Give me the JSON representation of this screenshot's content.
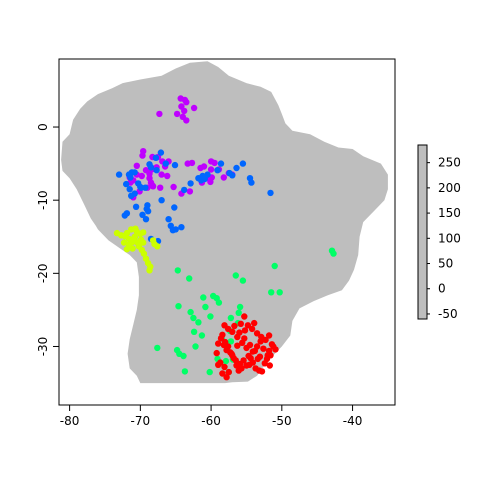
{
  "chart_data": {
    "type": "scatter",
    "title": "",
    "xlabel": "",
    "ylabel": "",
    "xlim": [
      -81.5,
      -34
    ],
    "ylim": [
      -38,
      9.3
    ],
    "x_ticks": [
      -80,
      -70,
      -60,
      -50,
      -40
    ],
    "y_ticks": [
      0,
      -10,
      -20,
      -30
    ],
    "background": {
      "description_kind": "raster map of South America (elevation-like scale, single grey in figure)",
      "fill_color": "#bebebe"
    },
    "colorbar": {
      "ticks": [
        250,
        200,
        150,
        100,
        50,
        0,
        -50
      ],
      "range": [
        -60,
        285
      ],
      "color": "#bebebe"
    },
    "series": [
      {
        "color": "#bf00ff",
        "x": [
          -64.3,
          -63.7,
          -63.5,
          -64.2,
          -63.8,
          -64.8,
          -64.0,
          -63.5,
          -62.4,
          -67.3,
          -69.7,
          -69.6,
          -68.3,
          -67.5,
          -66.9,
          -66.5,
          -68.4,
          -67.0,
          -66.2,
          -69.2,
          -68.7,
          -69.8,
          -68.7,
          -68.5,
          -68.2,
          -67.7,
          -69.0,
          -70.1,
          -68.3,
          -67.2,
          -70.5,
          -71.5,
          -71.0,
          -71.4,
          -70.5,
          -66.0,
          -65.3,
          -64.2,
          -63.3,
          -62.7,
          -63.0,
          -61.5,
          -61.0,
          -60.6,
          -60.1,
          -59.9,
          -59.5,
          -61.3,
          -60.0,
          -60.0,
          -58.9,
          -58.2,
          -57.5,
          -57.0,
          -71.0
        ],
        "y": [
          3.9,
          3.7,
          3.4,
          2.8,
          2.2,
          1.8,
          1.4,
          0.9,
          2.6,
          1.8,
          -3.9,
          -3.3,
          -4.1,
          -4.1,
          -4.7,
          -5.4,
          -5.8,
          -6.5,
          -6.7,
          -5.9,
          -6.4,
          -6.7,
          -7.0,
          -7.6,
          -8.1,
          -5.5,
          -8.3,
          -8.8,
          -8.0,
          -8.3,
          -6.5,
          -6.9,
          -7.3,
          -7.6,
          -5.3,
          -4.7,
          -8.2,
          -9.1,
          -5.0,
          -4.9,
          -8.8,
          -5.6,
          -5.4,
          -7.0,
          -7.5,
          -6.9,
          -4.9,
          -7.6,
          -4.7,
          -5.8,
          -5.8,
          -6.9,
          -6.3,
          -6.5,
          -9.6
        ]
      },
      {
        "color": "#0066ff",
        "x": [
          -73.0,
          -72.0,
          -71.5,
          -71.3,
          -70.8,
          -70.6,
          -71.9,
          -72.2,
          -71.2,
          -71.6,
          -70.8,
          -71.4,
          -70.3,
          -69.9,
          -69.3,
          -68.7,
          -67.8,
          -67.1,
          -66.4,
          -65.1,
          -65.7,
          -66.0,
          -67.5,
          -68.5,
          -69.2,
          -69.7,
          -65.4,
          -65.0,
          -64.2,
          -63.8,
          -62.9,
          -61.8,
          -61.4,
          -60.9,
          -60.5,
          -59.1,
          -58.6,
          -57.4,
          -57.0,
          -56.4,
          -55.5,
          -54.5,
          -54.3,
          -51.6,
          -69.1,
          -68.9,
          -69.0,
          -70.0,
          -67.0,
          -65.2,
          -68.5,
          -67.7,
          -61.2
        ],
        "y": [
          -6.5,
          -7.8,
          -8.5,
          -9.4,
          -9.1,
          -10.9,
          -11.8,
          -12.1,
          -6.2,
          -6.5,
          -6.2,
          -6.9,
          -7.7,
          -8.3,
          -8.3,
          -5.1,
          -4.2,
          -3.5,
          -5.0,
          -5.2,
          -13.5,
          -12.6,
          -15.6,
          -15.3,
          -12.6,
          -12.0,
          -14.1,
          -14.0,
          -13.7,
          -8.6,
          -7.7,
          -7.0,
          -7.3,
          -7.1,
          -6.5,
          -5.9,
          -5.0,
          -6.3,
          -6.6,
          -5.6,
          -5.0,
          -7.0,
          -7.6,
          -9.0,
          -11.2,
          -11.5,
          -10.7,
          -8.2,
          -10.0,
          -11.0,
          -5.5,
          -5.9,
          -6.7
        ]
      },
      {
        "color": "#ccff00",
        "x": [
          -73.3,
          -72.7,
          -72.2,
          -71.9,
          -71.6,
          -71.1,
          -70.8,
          -70.5,
          -70.0,
          -70.2,
          -69.8,
          -69.5,
          -69.2,
          -68.9,
          -68.6,
          -68.7,
          -71.6,
          -71.1,
          -71.3,
          -70.7,
          -70.4,
          -69.9,
          -69.6,
          -72.3,
          -71.9,
          -70.8,
          -69.6,
          -68.0,
          -67.6,
          -68.2
        ],
        "y": [
          -14.5,
          -14.8,
          -14.9,
          -14.5,
          -15.3,
          -15.7,
          -15.1,
          -14.3,
          -14.6,
          -16.3,
          -16.8,
          -17.3,
          -18.0,
          -18.6,
          -19.1,
          -19.6,
          -16.1,
          -16.6,
          -14.0,
          -13.9,
          -15.8,
          -15.4,
          -15.8,
          -15.8,
          -16.7,
          -15.0,
          -14.4,
          -16.0,
          -16.3,
          -15.5
        ]
      },
      {
        "color": "#00ff66",
        "x": [
          -64.7,
          -63.1,
          -56.5,
          -55.5,
          -55.9,
          -51.0,
          -51.5,
          -50.3,
          -42.9,
          -42.7,
          -64.6,
          -61.1,
          -60.8,
          -59.7,
          -59.2,
          -58.9,
          -57.2,
          -56.1,
          -62.9,
          -62.5,
          -61.8,
          -62.4,
          -61.3,
          -62.2,
          -63.9,
          -64.5,
          -64.8,
          -60.2,
          -58.5,
          -57.2,
          -59.1,
          -56.9,
          -57.5,
          -67.6,
          -63.7,
          -60.1,
          -56.2,
          -57.3,
          -58.0,
          -57.9
        ],
        "y": [
          -19.6,
          -20.7,
          -20.3,
          -21.0,
          -24.6,
          -19.0,
          -22.6,
          -22.6,
          -16.9,
          -17.3,
          -24.5,
          -23.3,
          -24.6,
          -23.1,
          -23.4,
          -24.0,
          -26.1,
          -25.4,
          -25.3,
          -26.1,
          -26.7,
          -28.0,
          -28.5,
          -30.0,
          -31.3,
          -31.0,
          -30.5,
          -33.5,
          -28.9,
          -29.3,
          -31.7,
          -31.8,
          -33.5,
          -30.2,
          -33.4,
          -25.9,
          -26.8,
          -27.9,
          -29.4,
          -32.0
        ]
      },
      {
        "color": "#ff0000",
        "x": [
          -55.3,
          -54.8,
          -54.2,
          -53.5,
          -52.9,
          -52.3,
          -51.4,
          -51.8,
          -52.0,
          -53.4,
          -54.1,
          -55.0,
          -55.7,
          -56.1,
          -56.4,
          -56.8,
          -57.3,
          -57.6,
          -58.0,
          -58.6,
          -58.2,
          -57.8,
          -57.0,
          -56.5,
          -55.9,
          -55.4,
          -54.7,
          -54.1,
          -53.5,
          -53.0,
          -52.6,
          -52.1,
          -51.7,
          -52.8,
          -53.7,
          -54.4,
          -55.0,
          -55.6,
          -56.3,
          -57.0,
          -57.6,
          -58.1,
          -58.4,
          -59.0,
          -59.2,
          -58.7,
          -58.1,
          -57.5,
          -57.8,
          -58.4,
          -59.0,
          -56.7,
          -56.0,
          -55.3,
          -54.5,
          -53.8,
          -53.1,
          -52.4,
          -51.6,
          -50.9,
          -53.9,
          -55.2,
          -56.3,
          -57.1,
          -54.6,
          -53.2,
          -51.8,
          -51.2,
          -55.8
        ],
        "y": [
          -25.9,
          -27.1,
          -27.6,
          -28.2,
          -28.7,
          -29.1,
          -29.7,
          -30.6,
          -31.2,
          -31.7,
          -32.2,
          -32.6,
          -33.0,
          -33.3,
          -32.6,
          -31.6,
          -30.8,
          -30.0,
          -29.4,
          -28.9,
          -29.8,
          -30.5,
          -31.2,
          -31.9,
          -32.4,
          -31.9,
          -31.3,
          -30.7,
          -30.0,
          -29.3,
          -30.3,
          -31.7,
          -32.6,
          -33.4,
          -33.0,
          -31.6,
          -30.2,
          -29.5,
          -28.7,
          -28.0,
          -27.6,
          -27.1,
          -28.4,
          -29.6,
          -30.9,
          -32.2,
          -32.8,
          -33.5,
          -34.2,
          -33.7,
          -32.5,
          -27.2,
          -28.1,
          -28.9,
          -29.8,
          -30.6,
          -31.4,
          -32.3,
          -31.2,
          -30.4,
          -26.8,
          -27.8,
          -29.9,
          -31.0,
          -32.5,
          -33.3,
          -28.5,
          -30.0,
          -26.9
        ]
      }
    ]
  }
}
